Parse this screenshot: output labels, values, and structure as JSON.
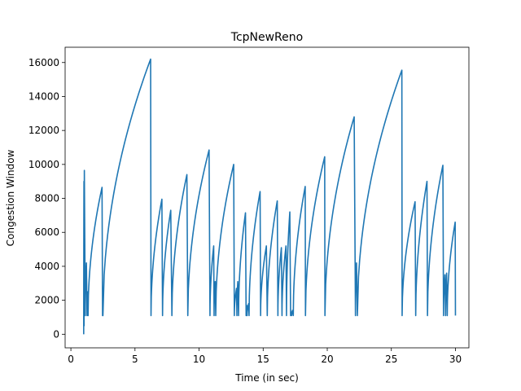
{
  "chart_data": {
    "type": "line",
    "title": "TcpNewReno",
    "xlabel": "Time (in sec)",
    "ylabel": "Congestion Window",
    "xlim": [
      -0.45,
      31.05
    ],
    "ylim": [
      -800,
      16900
    ],
    "xticks": [
      0,
      5,
      10,
      15,
      20,
      25,
      30
    ],
    "yticks": [
      0,
      2000,
      4000,
      6000,
      8000,
      10000,
      12000,
      14000,
      16000
    ],
    "grid": false,
    "series_color": "#1f77b4",
    "series": [
      {
        "growth_segments": [
          [
            1.0,
            0,
            1.02,
            9000
          ],
          [
            1.02,
            9000,
            1.03,
            500
          ],
          [
            1.03,
            500,
            1.05,
            9650
          ],
          [
            1.12,
            1100,
            1.21,
            4200
          ],
          [
            1.26,
            1100,
            1.31,
            2500
          ],
          [
            1.34,
            1100,
            2.43,
            8650
          ],
          [
            2.47,
            1100,
            2.49,
            2300
          ],
          [
            2.5,
            1100,
            6.22,
            16200
          ],
          [
            6.25,
            1100,
            7.1,
            7950
          ],
          [
            7.15,
            1100,
            7.79,
            7300
          ],
          [
            7.88,
            1100,
            9.05,
            9400
          ],
          [
            9.12,
            1100,
            10.78,
            10850
          ],
          [
            10.85,
            1100,
            11.14,
            5200
          ],
          [
            11.17,
            1100,
            11.26,
            3100
          ],
          [
            11.3,
            1100,
            12.7,
            10000
          ],
          [
            12.75,
            1100,
            12.92,
            2700
          ],
          [
            12.95,
            1100,
            13.02,
            3100
          ],
          [
            13.08,
            1100,
            13.62,
            7150
          ],
          [
            13.67,
            1100,
            13.72,
            1700
          ],
          [
            13.75,
            1100,
            13.86,
            1800
          ],
          [
            13.9,
            1100,
            14.76,
            8400
          ],
          [
            14.8,
            1100,
            15.25,
            5200
          ],
          [
            15.32,
            1100,
            16.1,
            7850
          ],
          [
            16.15,
            1100,
            16.42,
            5100
          ],
          [
            16.47,
            1100,
            16.78,
            5200
          ],
          [
            16.82,
            1100,
            17.08,
            7200
          ],
          [
            17.14,
            1100,
            17.18,
            1300
          ],
          [
            17.22,
            1100,
            17.28,
            1400
          ],
          [
            17.35,
            1100,
            18.28,
            8700
          ],
          [
            18.3,
            1100,
            19.8,
            10450
          ],
          [
            19.82,
            1100,
            22.1,
            12800
          ],
          [
            22.2,
            1100,
            22.28,
            4200
          ],
          [
            22.35,
            1100,
            25.82,
            15550
          ],
          [
            25.84,
            1100,
            26.85,
            7800
          ],
          [
            26.9,
            1100,
            27.78,
            9000
          ],
          [
            27.82,
            1100,
            29.02,
            9950
          ],
          [
            29.07,
            1100,
            29.18,
            3500
          ],
          [
            29.23,
            1100,
            29.31,
            3600
          ],
          [
            29.36,
            1100,
            29.98,
            6600
          ],
          [
            30.0,
            1100,
            30.0,
            1500
          ]
        ]
      }
    ]
  }
}
